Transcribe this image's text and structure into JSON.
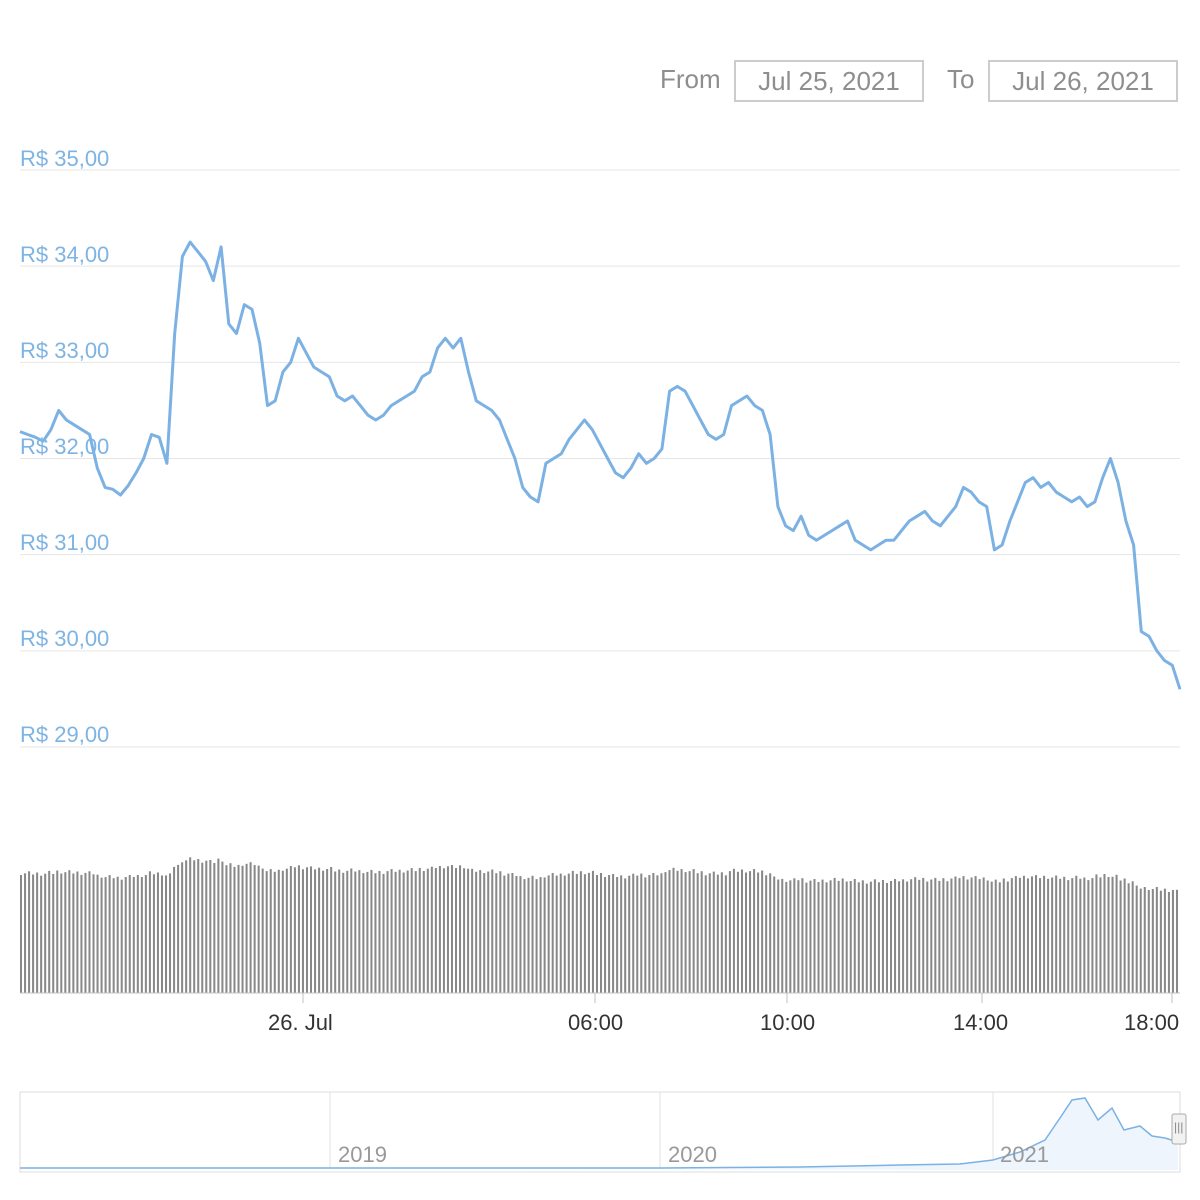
{
  "range_selector": {
    "from_label": "From",
    "from_value": "Jul 25, 2021",
    "to_label": "To",
    "to_value": "Jul 26, 2021"
  },
  "navigator": {
    "year_labels": [
      "2019",
      "2020",
      "2021"
    ],
    "handle_glyph": "|||"
  },
  "colors": {
    "line": "#7cb1e3",
    "axis_label": "#7eb4e3",
    "gridline": "#e6e6e6",
    "volume_bar": "#888888",
    "navigator_fill": "#eef5fc"
  },
  "chart_data": {
    "type": "line",
    "y_tick_labels": [
      "R$ 35,00",
      "R$ 34,00",
      "R$ 33,00",
      "R$ 32,00",
      "R$ 31,00",
      "R$ 30,00",
      "R$ 29,00"
    ],
    "x_tick_labels": [
      "26. Jul",
      "06:00",
      "10:00",
      "14:00",
      "18:00"
    ],
    "ylim": [
      29,
      35
    ],
    "grid": true,
    "price_series": [
      32.28,
      32.25,
      32.22,
      32.18,
      32.3,
      32.5,
      32.4,
      32.35,
      32.3,
      32.25,
      31.9,
      31.7,
      31.68,
      31.62,
      31.72,
      31.85,
      32.0,
      32.25,
      32.22,
      31.95,
      33.3,
      34.1,
      34.25,
      34.15,
      34.05,
      33.85,
      34.2,
      33.4,
      33.3,
      33.6,
      33.55,
      33.2,
      32.55,
      32.6,
      32.9,
      33.0,
      33.25,
      33.1,
      32.95,
      32.9,
      32.85,
      32.65,
      32.6,
      32.65,
      32.55,
      32.45,
      32.4,
      32.45,
      32.55,
      32.6,
      32.65,
      32.7,
      32.85,
      32.9,
      33.15,
      33.25,
      33.15,
      33.25,
      32.9,
      32.6,
      32.55,
      32.5,
      32.4,
      32.2,
      32.0,
      31.7,
      31.6,
      31.55,
      31.95,
      32.0,
      32.05,
      32.2,
      32.3,
      32.4,
      32.3,
      32.15,
      32.0,
      31.85,
      31.8,
      31.9,
      32.05,
      31.95,
      32.0,
      32.1,
      32.7,
      32.75,
      32.7,
      32.55,
      32.4,
      32.25,
      32.2,
      32.25,
      32.55,
      32.6,
      32.65,
      32.55,
      32.5,
      32.25,
      31.5,
      31.3,
      31.25,
      31.4,
      31.2,
      31.15,
      31.2,
      31.25,
      31.3,
      31.35,
      31.15,
      31.1,
      31.05,
      31.1,
      31.15,
      31.15,
      31.25,
      31.35,
      31.4,
      31.45,
      31.35,
      31.3,
      31.4,
      31.5,
      31.7,
      31.65,
      31.55,
      31.5,
      31.05,
      31.1,
      31.35,
      31.55,
      31.75,
      31.8,
      31.7,
      31.75,
      31.65,
      31.6,
      31.55,
      31.6,
      31.5,
      31.55,
      31.8,
      32.0,
      31.75,
      31.35,
      31.1,
      30.2,
      30.15,
      30.0,
      29.9,
      29.85,
      29.6
    ]
  }
}
